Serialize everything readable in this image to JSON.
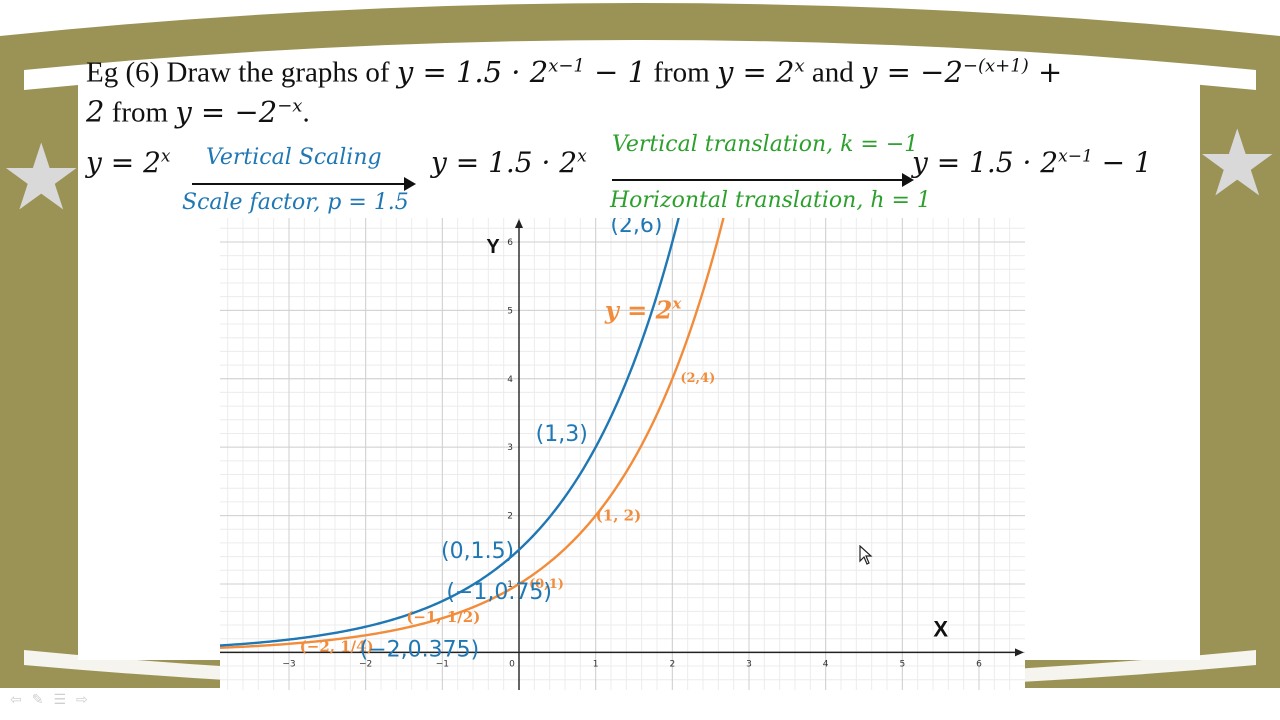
{
  "slide": {
    "title_prefix": "Eg (6) Draw the graphs of ",
    "eq1": "y = 1.5 · 2",
    "eq1_exp": "x−1",
    "eq1_tail": " − 1",
    "from1": " from ",
    "eq2": "y = 2",
    "eq2_exp": "x",
    "and": " and ",
    "eq3": "y = −2",
    "eq3_exp": "−(x+1)",
    "eq3_tail": " +",
    "line2_a": "2",
    "from2": " from ",
    "eq4": "y = −2",
    "eq4_exp": "−x",
    "period": "."
  },
  "transform": {
    "start_eq": "y = 2",
    "start_exp": "x",
    "step1_top": "Vertical Scaling",
    "step1_bottom": "Scale factor, p = 1.5",
    "mid_eq": "y = 1.5 · 2",
    "mid_exp": "x",
    "step2_top": "Vertical translation, k = −1",
    "step2_bottom": "Horizontal translation, h = 1",
    "end_eq": "y = 1.5 · 2",
    "end_exp": "x−1",
    "end_tail": " − 1"
  },
  "colors": {
    "frame": "#9b9356",
    "blue": "#1f77b4",
    "orange": "#f28c3a",
    "green": "#2ca02c"
  },
  "chart_data": {
    "type": "line",
    "xlabel": "X",
    "ylabel": "Y",
    "xlim": [
      -3.9,
      6.6
    ],
    "ylim": [
      -0.55,
      6.35
    ],
    "x_ticks": [
      -3,
      -2,
      -1,
      0,
      1,
      2,
      3,
      4,
      5,
      6
    ],
    "y_ticks": [
      1,
      2,
      3,
      4,
      5,
      6
    ],
    "grid": true,
    "series": [
      {
        "name": "y = 2^x",
        "color": "orange",
        "formula": "2^x",
        "points": [
          {
            "x": -2,
            "y": 0.25,
            "label": "(−2, 1/4)"
          },
          {
            "x": -1,
            "y": 0.5,
            "label": "(−1, 1/2)"
          },
          {
            "x": 0,
            "y": 1,
            "label": "(0,1)"
          },
          {
            "x": 1,
            "y": 2,
            "label": "(1, 2)"
          },
          {
            "x": 2,
            "y": 4,
            "label": "(2,4)"
          }
        ]
      },
      {
        "name": "",
        "color": "blue",
        "formula": "1.5*2^x",
        "points": [
          {
            "x": -2,
            "y": 0.375,
            "label": "(−2,0.375)"
          },
          {
            "x": -1,
            "y": 0.75,
            "label": "(−1,0.75)"
          },
          {
            "x": 0,
            "y": 1.5,
            "label": "(0,1.5)"
          },
          {
            "x": 1,
            "y": 3,
            "label": "(1,3)"
          },
          {
            "x": 2,
            "y": 6,
            "label": "(2,6)"
          }
        ]
      }
    ],
    "curve_label": "y = 2",
    "curve_label_exp": "x"
  }
}
